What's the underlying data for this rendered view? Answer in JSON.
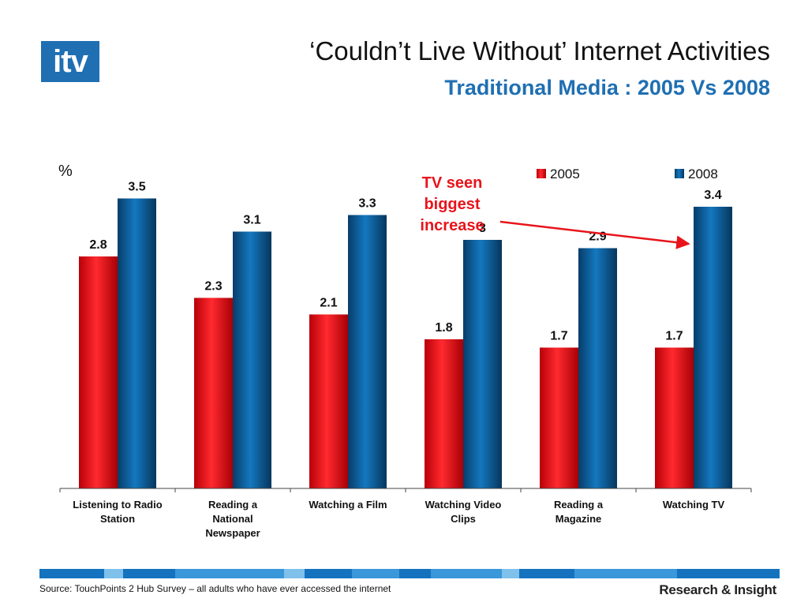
{
  "header": {
    "logo_text": "itv",
    "title": "‘Couldn’t Live Without’ Internet Activities",
    "subtitle": "Traditional Media : 2005 Vs 2008"
  },
  "chart_data": {
    "type": "bar",
    "ylabel": "%",
    "categories": [
      [
        "Listening to Radio",
        "Station"
      ],
      [
        "Reading a",
        "National",
        "Newspaper"
      ],
      [
        "Watching a Film"
      ],
      [
        "Watching Video",
        "Clips"
      ],
      [
        "Reading a",
        "Magazine"
      ],
      [
        "Watching TV"
      ]
    ],
    "series": [
      {
        "name": "2005",
        "values": [
          2.8,
          2.3,
          2.1,
          1.8,
          1.7,
          1.7
        ],
        "labels": [
          "2.8",
          "2.3",
          "2.1",
          "1.8",
          "1.7",
          "1.7"
        ],
        "color": "#e8141b"
      },
      {
        "name": "2008",
        "values": [
          3.5,
          3.1,
          3.3,
          3.0,
          2.9,
          3.4
        ],
        "labels": [
          "3.5",
          "3.1",
          "3.3",
          "3",
          "2.9",
          "3.4"
        ],
        "color": "#0e5c96"
      }
    ],
    "ylim": [
      0,
      4.0
    ],
    "grid": false,
    "legend_position": "top-right",
    "annotation": {
      "lines": [
        "TV seen",
        "biggest",
        "increase"
      ],
      "color": "#e8141b",
      "target_category": "Watching TV"
    }
  },
  "footer": {
    "source": "Source: TouchPoints 2 Hub Survey  – all adults who have ever accessed the internet",
    "brand": "Research & Insight"
  }
}
